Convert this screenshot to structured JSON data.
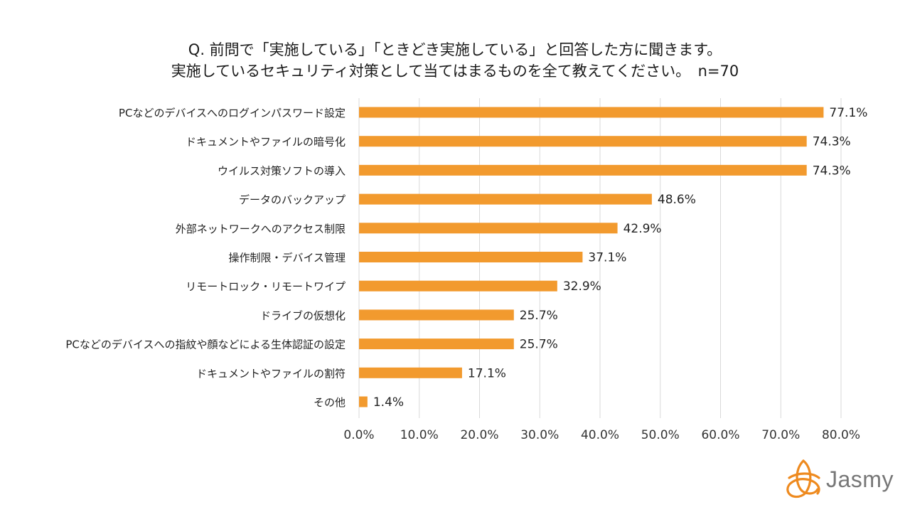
{
  "title": {
    "line1": "Q. 前問で「実施している」「ときどき実施している」と回答した方に聞きます。",
    "line2": "実施しているセキュリティ対策として当てはまるものを全て教えてください。　n=70"
  },
  "chart_data": {
    "type": "bar",
    "orientation": "horizontal",
    "categories": [
      "PCなどのデバイスへのログインパスワード設定",
      "ドキュメントやファイルの暗号化",
      "ウイルス対策ソフトの導入",
      "データのバックアップ",
      "外部ネットワークへのアクセス制限",
      "操作制限・デバイス管理",
      "リモートロック・リモートワイプ",
      "ドライブの仮想化",
      "PCなどのデバイスへの指紋や顔などによる生体認証の設定",
      "ドキュメントやファイルの割符",
      "その他"
    ],
    "values": [
      77.1,
      74.3,
      74.3,
      48.6,
      42.9,
      37.1,
      32.9,
      25.7,
      25.7,
      17.1,
      1.4
    ],
    "value_labels": [
      "77.1%",
      "74.3%",
      "74.3%",
      "48.6%",
      "42.9%",
      "37.1%",
      "32.9%",
      "25.7%",
      "25.7%",
      "17.1%",
      "1.4%"
    ],
    "xlim": [
      0,
      80
    ],
    "xticks": [
      "0.0%",
      "10.0%",
      "20.0%",
      "30.0%",
      "40.0%",
      "50.0%",
      "60.0%",
      "70.0%",
      "80.0%"
    ],
    "xtick_values": [
      0,
      10,
      20,
      30,
      40,
      50,
      60,
      70,
      80
    ],
    "grid": true,
    "bar_color": "#F29A2E",
    "grid_color": "#D9D9D9"
  },
  "brand": {
    "name": "Jasmy",
    "color": "#EE8A1F"
  }
}
